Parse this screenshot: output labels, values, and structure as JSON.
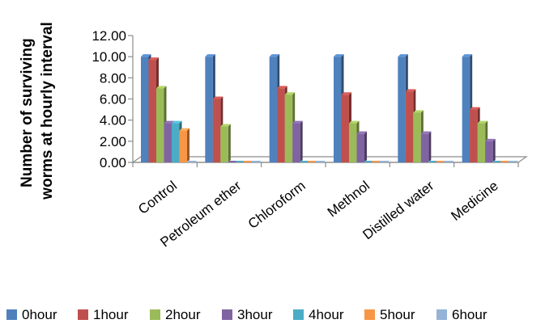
{
  "chart_data": {
    "type": "bar",
    "title": "",
    "xlabel": "",
    "ylabel": "Number of surviving worms at hourly interval",
    "ylim": [
      0,
      12
    ],
    "yticks": [
      "0.00",
      "2.00",
      "4.00",
      "6.00",
      "8.00",
      "10.00",
      "12.00"
    ],
    "grid": false,
    "legend_position": "bottom",
    "categories": [
      "Control",
      "Petroleum ether",
      "Chloroform",
      "Methnol",
      "Distilled water",
      "Medicine"
    ],
    "series": [
      {
        "name": "0hour",
        "color": "#4F81BD",
        "values": [
          10,
          10,
          10,
          10,
          10,
          10
        ]
      },
      {
        "name": "1hour",
        "color": "#C0504D",
        "values": [
          9.7,
          6,
          7,
          6.4,
          6.7,
          5
        ]
      },
      {
        "name": "2hour",
        "color": "#9BBB59",
        "values": [
          7,
          3.4,
          6.4,
          3.7,
          4.7,
          3.7
        ]
      },
      {
        "name": "3hour",
        "color": "#8064A2",
        "values": [
          3.7,
          0,
          3.7,
          2.7,
          2.7,
          2
        ]
      },
      {
        "name": "4hour",
        "color": "#4BACC6",
        "values": [
          3.7,
          0,
          0,
          0,
          0,
          0
        ]
      },
      {
        "name": "5hour",
        "color": "#F79646",
        "values": [
          3,
          0,
          0,
          0,
          0,
          0
        ]
      },
      {
        "name": "6hour",
        "color": "#95B3D7",
        "values": [
          0,
          0,
          0,
          0,
          0,
          0
        ]
      }
    ]
  }
}
